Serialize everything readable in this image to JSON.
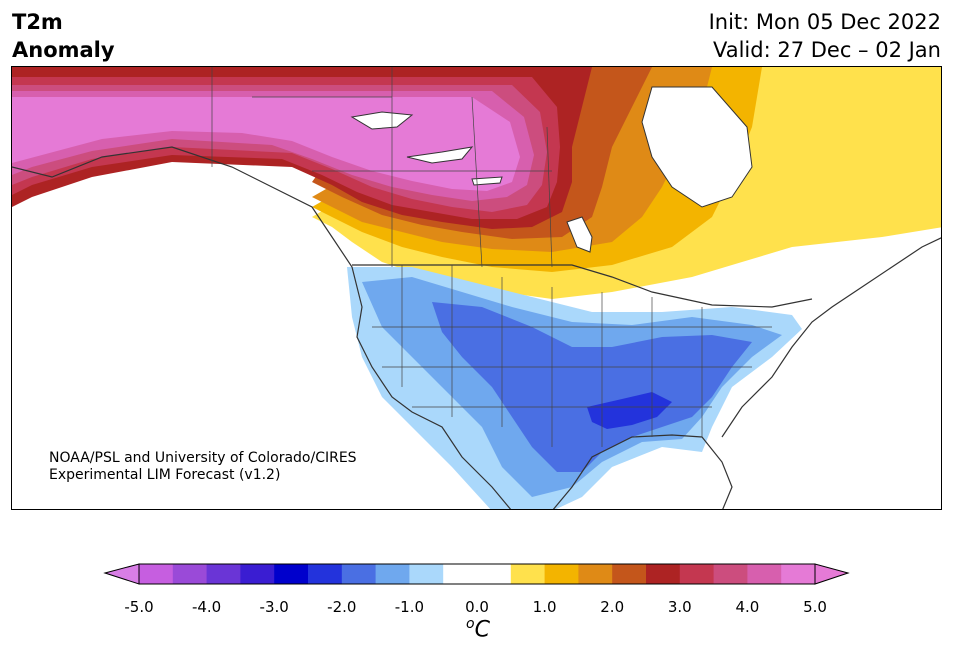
{
  "title": {
    "variable_line1": "T2m",
    "variable_line2": "Anomaly",
    "init": "Init: Mon 05 Dec 2022",
    "valid": "Valid: 27 Dec – 02 Jan"
  },
  "credit": {
    "line1": "NOAA/PSL and University of Colorado/CIRES",
    "line2": "Experimental LIM Forecast (v1.2)"
  },
  "colorbar": {
    "units_base": "C",
    "units_sup": "o",
    "ticks": [
      "-5.0",
      "-4.0",
      "-3.0",
      "-2.0",
      "-1.0",
      "0.0",
      "1.0",
      "2.0",
      "3.0",
      "4.0",
      "5.0"
    ],
    "colors": [
      "#c65ee0",
      "#9a4ad8",
      "#6a35d6",
      "#3a1dd2",
      "#0000cc",
      "#2333dc",
      "#4a6fe3",
      "#6fa8ee",
      "#aad8fb",
      "#ffffff",
      "#ffffff",
      "#ffe14c",
      "#f3b400",
      "#df8a16",
      "#c4561b",
      "#ad2323",
      "#c43750",
      "#cc4d7e",
      "#d75fae",
      "#e57ad6"
    ],
    "under_color": "#d87ee6",
    "over_color": "#e57ad6"
  },
  "map_colors": {
    "pink_strong": "#e57ad6",
    "pink": "#d75fae",
    "rose": "#cc4d7e",
    "crimson": "#c43750",
    "dark_red": "#ad2323",
    "rust": "#c4561b",
    "orange": "#df8a16",
    "gold": "#f3b400",
    "yellow": "#ffe14c",
    "pale_blue": "#aad8fb",
    "light_blue": "#6fa8ee",
    "blue": "#4a6fe3",
    "deep_blue": "#2333dc",
    "coast": "#333333"
  }
}
